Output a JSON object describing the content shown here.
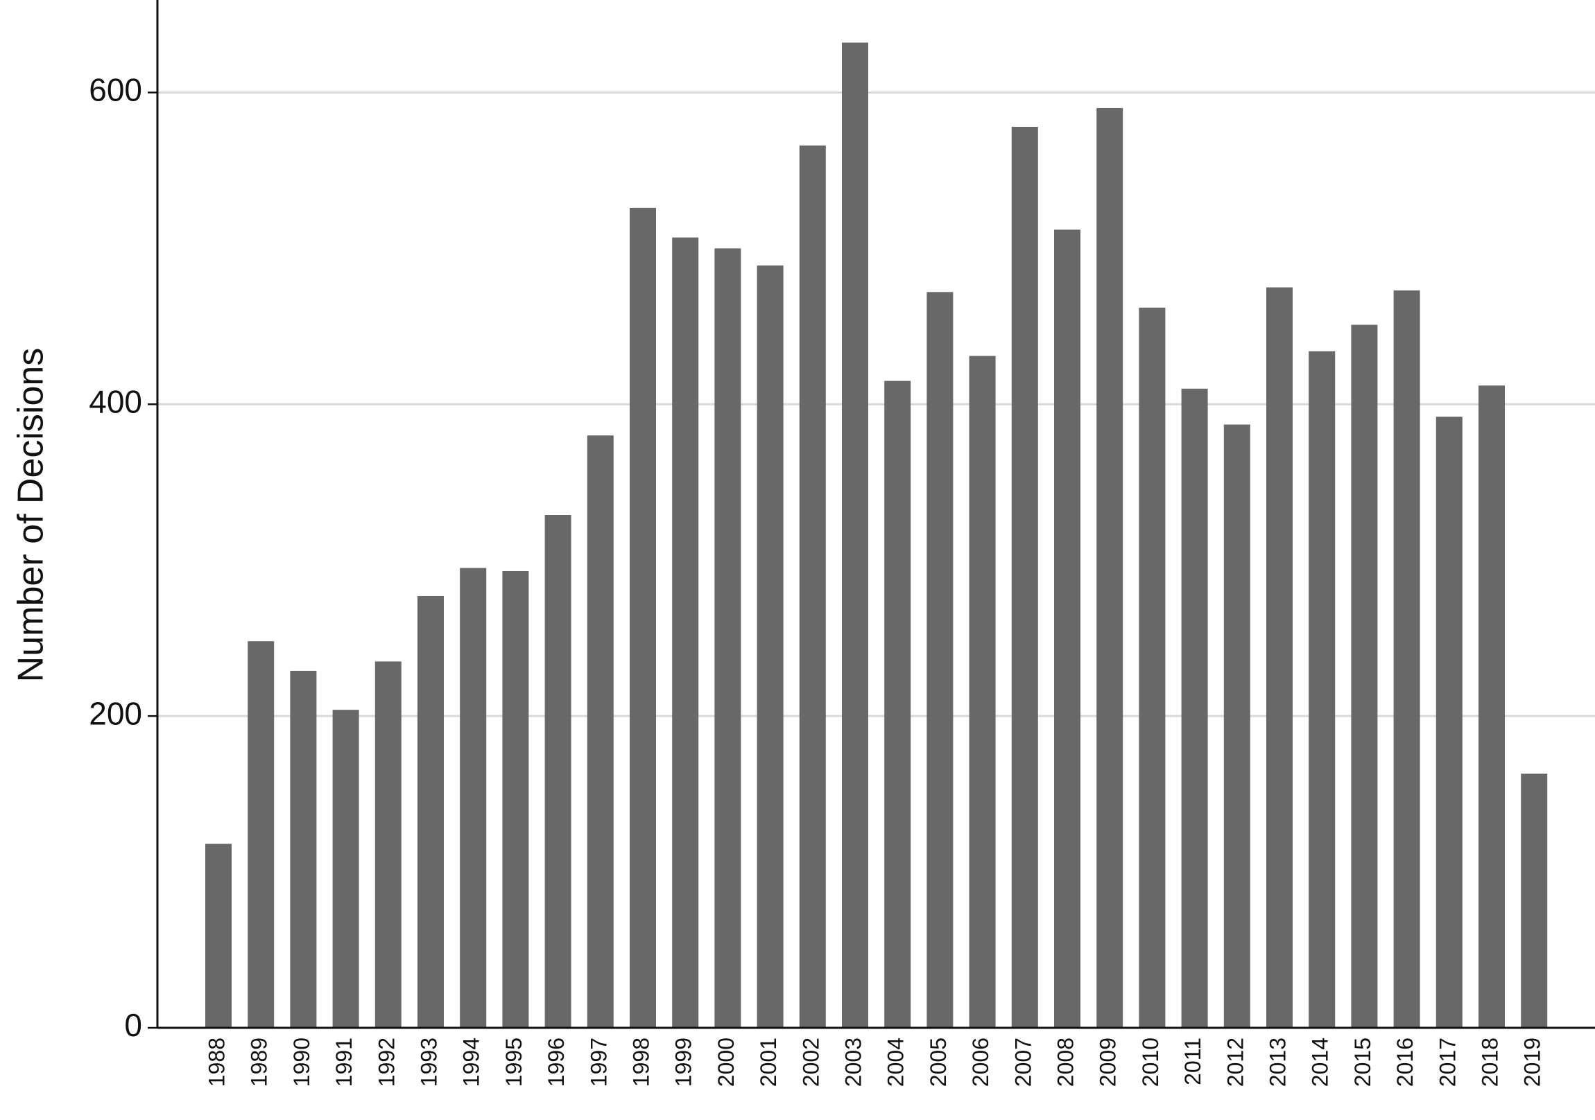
{
  "chart_data": {
    "type": "bar",
    "y_label": "Number of Decisions",
    "categories": [
      "1988",
      "1989",
      "1990",
      "1991",
      "1992",
      "1993",
      "1994",
      "1995",
      "1996",
      "1997",
      "1998",
      "1999",
      "2000",
      "2001",
      "2002",
      "2003",
      "2004",
      "2005",
      "2006",
      "2007",
      "2008",
      "2009",
      "2010",
      "2011",
      "2012",
      "2013",
      "2014",
      "2015",
      "2016",
      "2017",
      "2018",
      "2019"
    ],
    "values": [
      118,
      248,
      229,
      204,
      235,
      277,
      295,
      293,
      329,
      380,
      526,
      507,
      500,
      489,
      566,
      632,
      415,
      472,
      431,
      578,
      512,
      590,
      462,
      410,
      387,
      475,
      434,
      451,
      473,
      392,
      412,
      163
    ],
    "color": "#686868",
    "ylim": [
      0,
      658
    ],
    "yticks": [
      0,
      200,
      400,
      600
    ],
    "grid": true
  }
}
